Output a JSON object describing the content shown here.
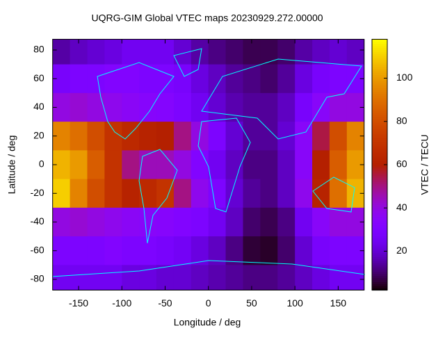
{
  "chart_data": {
    "type": "heatmap",
    "title": "UQRG-GIM Global VTEC maps 20230929.272.00000",
    "xlabel": "Longitude / deg",
    "ylabel": "Latitude / deg",
    "zlabel": "VTEC / TECU",
    "x": [
      -170,
      -150,
      -130,
      -110,
      -90,
      -70,
      -50,
      -30,
      -10,
      10,
      30,
      50,
      70,
      90,
      110,
      130,
      150,
      170
    ],
    "y": [
      80,
      60,
      40,
      20,
      0,
      -20,
      -40,
      -60,
      -80
    ],
    "values": [
      [
        15,
        18,
        20,
        22,
        25,
        25,
        25,
        20,
        15,
        12,
        10,
        8,
        8,
        10,
        15,
        18,
        20,
        18
      ],
      [
        28,
        30,
        30,
        32,
        32,
        30,
        30,
        28,
        22,
        18,
        14,
        12,
        10,
        14,
        22,
        28,
        30,
        30
      ],
      [
        40,
        42,
        40,
        38,
        36,
        34,
        33,
        30,
        25,
        20,
        16,
        14,
        14,
        18,
        28,
        35,
        40,
        40
      ],
      [
        95,
        90,
        80,
        70,
        65,
        62,
        60,
        50,
        40,
        30,
        20,
        14,
        14,
        20,
        35,
        55,
        80,
        95
      ],
      [
        105,
        100,
        85,
        70,
        50,
        45,
        45,
        40,
        32,
        25,
        18,
        12,
        12,
        18,
        35,
        60,
        85,
        100
      ],
      [
        110,
        95,
        80,
        70,
        62,
        65,
        70,
        50,
        38,
        30,
        20,
        14,
        12,
        18,
        38,
        62,
        90,
        105
      ],
      [
        40,
        42,
        40,
        38,
        36,
        35,
        34,
        32,
        30,
        25,
        18,
        10,
        8,
        12,
        25,
        35,
        40,
        40
      ],
      [
        30,
        30,
        30,
        32,
        30,
        30,
        28,
        26,
        22,
        18,
        12,
        6,
        5,
        10,
        20,
        28,
        30,
        30
      ],
      [
        25,
        25,
        25,
        25,
        22,
        22,
        20,
        20,
        18,
        16,
        14,
        12,
        12,
        14,
        18,
        22,
        25,
        25
      ]
    ],
    "xlim": [
      -180,
      180
    ],
    "ylim": [
      -87.5,
      87.5
    ],
    "zlim": [
      2,
      118
    ],
    "xticks": [
      -150,
      -100,
      -50,
      0,
      50,
      100,
      150
    ],
    "yticks": [
      -80,
      -60,
      -40,
      -20,
      0,
      20,
      40,
      60,
      80
    ],
    "zticks": [
      20,
      40,
      60,
      80,
      100
    ],
    "coastline_color": "#00ffff"
  }
}
